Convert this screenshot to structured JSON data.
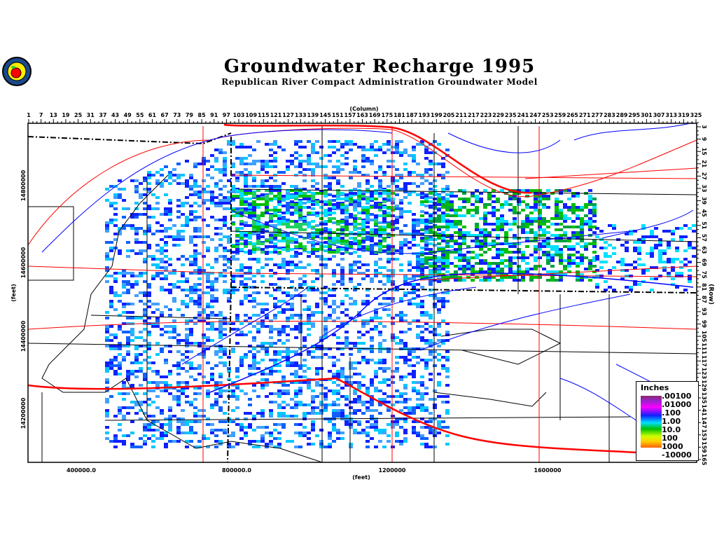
{
  "title": "Groundwater Recharge 1995",
  "subtitle": "Republican River Compact Administration Groundwater Model",
  "logo": {
    "icon": "apple-seal-logo"
  },
  "axes": {
    "column_label": "(Column)",
    "row_label": "(Row)",
    "x_label": "(feet)",
    "y_label": "(feet)",
    "columns": [
      1,
      7,
      13,
      19,
      25,
      31,
      37,
      43,
      49,
      55,
      61,
      67,
      73,
      79,
      85,
      91,
      97,
      103,
      109,
      115,
      121,
      127,
      133,
      139,
      145,
      151,
      157,
      163,
      169,
      175,
      181,
      187,
      193,
      199,
      205,
      211,
      217,
      223,
      229,
      235,
      241,
      247,
      253,
      259,
      265,
      271,
      277,
      283,
      289,
      295,
      301,
      307,
      313,
      319,
      325
    ],
    "rows": [
      3,
      9,
      15,
      21,
      27,
      33,
      39,
      45,
      51,
      57,
      63,
      69,
      75,
      81,
      87,
      93,
      99,
      105,
      111,
      117,
      123,
      129,
      135,
      141,
      147,
      153,
      159,
      165
    ],
    "x_ticks": [
      "400000.0",
      "800000.0",
      "1200000",
      "1600000"
    ],
    "y_ticks": [
      "14800000",
      "14600000",
      "14400000",
      "14200000"
    ]
  },
  "legend": {
    "title": "Inches",
    "values": [
      ".00100",
      ".01000",
      ".100",
      "1.00",
      "10.0",
      "100",
      "1000",
      "-10000"
    ]
  },
  "colors": {
    "rivers": "#0000ff",
    "roads": "#ff0000",
    "boundaries": "#000000",
    "low": "#1020ff",
    "mid": "#00e0ff",
    "high": "#00c000"
  }
}
